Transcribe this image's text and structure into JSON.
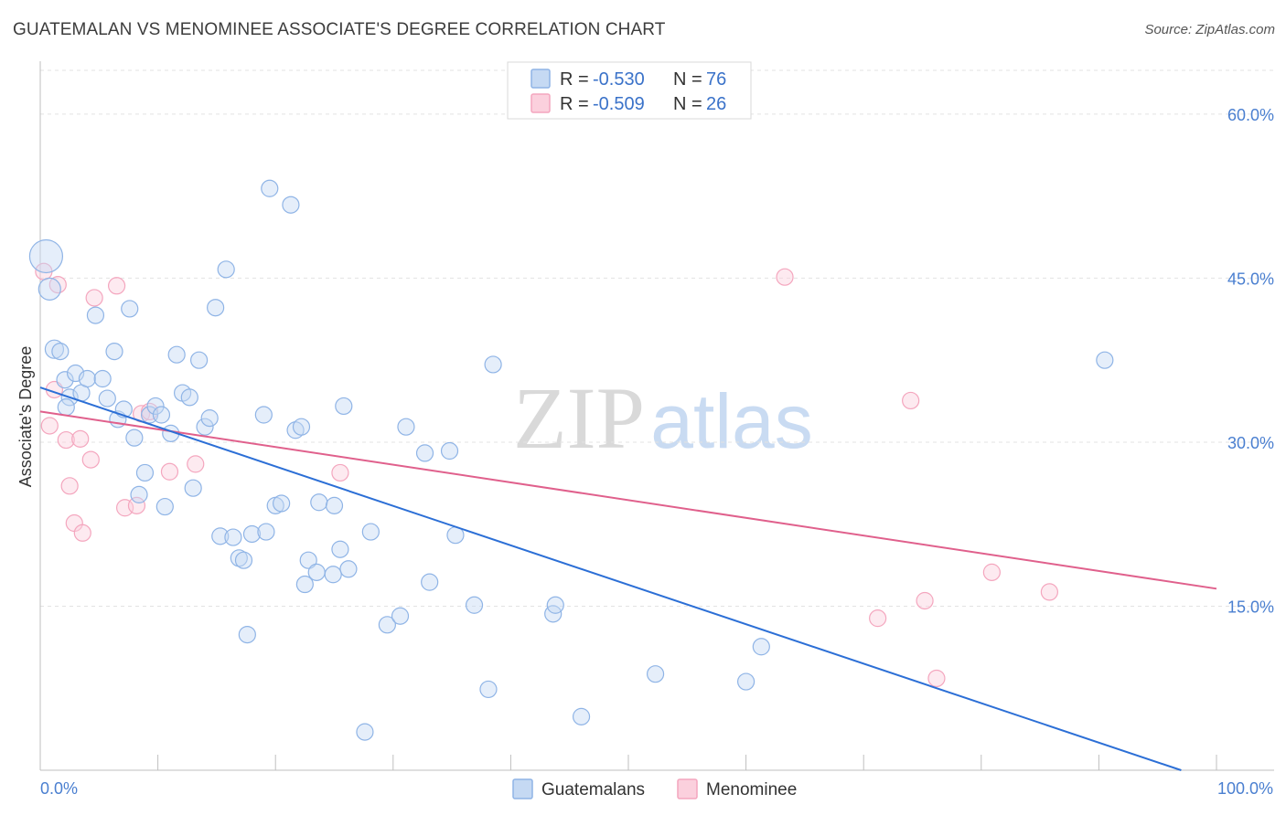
{
  "title": "GUATEMALAN VS MENOMINEE ASSOCIATE'S DEGREE CORRELATION CHART",
  "source": "Source: ZipAtlas.com",
  "watermark": {
    "zip": "ZIP",
    "atlas": "atlas"
  },
  "colors": {
    "blue": "#8fb4e6",
    "blue_line": "#2c6fd6",
    "pink": "#f4a6be",
    "pink_line": "#e0608c",
    "axis_text": "#4a7fd0"
  },
  "legend": {
    "rows": [
      {
        "r_label": "R = ",
        "r_value": "-0.530",
        "n_label": "N = ",
        "n_value": "76"
      },
      {
        "r_label": "R = ",
        "r_value": "-0.509",
        "n_label": "N = ",
        "n_value": "26"
      }
    ]
  },
  "chart_data": {
    "type": "scatter",
    "title": "GUATEMALAN VS MENOMINEE ASSOCIATE'S DEGREE CORRELATION CHART",
    "xlabel": "",
    "ylabel": "Associate's Degree",
    "xlim": [
      0,
      100
    ],
    "ylim": [
      0,
      64
    ],
    "x_tick_labels": [
      "0.0%",
      "100.0%"
    ],
    "y_ticks": [
      15,
      30,
      45,
      60
    ],
    "y_tick_labels": [
      "15.0%",
      "30.0%",
      "45.0%",
      "60.0%"
    ],
    "grid": true,
    "legend_position": "top-center",
    "series": [
      {
        "name": "Guatemalans",
        "color": "#8fb4e6",
        "trend": {
          "x": [
            0,
            97
          ],
          "y": [
            35.0,
            0.0
          ]
        },
        "points": [
          [
            0.5,
            47.0,
            18
          ],
          [
            0.8,
            44.0,
            12
          ],
          [
            1.2,
            38.5,
            10
          ],
          [
            1.7,
            38.3,
            9
          ],
          [
            2.1,
            35.7,
            9
          ],
          [
            2.5,
            34.1,
            9
          ],
          [
            3.0,
            36.3,
            9
          ],
          [
            3.5,
            34.5,
            9
          ],
          [
            2.2,
            33.2,
            9
          ],
          [
            4.0,
            35.8,
            9
          ],
          [
            4.7,
            41.6,
            9
          ],
          [
            5.3,
            35.8,
            9
          ],
          [
            5.7,
            34.0,
            9
          ],
          [
            6.3,
            38.3,
            9
          ],
          [
            6.6,
            32.1,
            9
          ],
          [
            7.1,
            33.0,
            9
          ],
          [
            7.6,
            42.2,
            9
          ],
          [
            8.0,
            30.4,
            9
          ],
          [
            8.4,
            25.2,
            9
          ],
          [
            8.9,
            27.2,
            9
          ],
          [
            9.3,
            32.5,
            9
          ],
          [
            9.8,
            33.3,
            9
          ],
          [
            10.3,
            32.5,
            9
          ],
          [
            10.6,
            24.1,
            9
          ],
          [
            11.1,
            30.8,
            9
          ],
          [
            11.6,
            38.0,
            9
          ],
          [
            12.1,
            34.5,
            9
          ],
          [
            12.7,
            34.1,
            9
          ],
          [
            13.0,
            25.8,
            9
          ],
          [
            13.5,
            37.5,
            9
          ],
          [
            14.0,
            31.4,
            9
          ],
          [
            14.4,
            32.2,
            9
          ],
          [
            14.9,
            42.3,
            9
          ],
          [
            15.3,
            21.4,
            9
          ],
          [
            15.8,
            45.8,
            9
          ],
          [
            16.4,
            21.3,
            9
          ],
          [
            16.9,
            19.4,
            9
          ],
          [
            17.3,
            19.2,
            9
          ],
          [
            17.6,
            12.4,
            9
          ],
          [
            18.0,
            21.6,
            9
          ],
          [
            19.0,
            32.5,
            9
          ],
          [
            19.2,
            21.8,
            9
          ],
          [
            19.5,
            53.2,
            9
          ],
          [
            20.0,
            24.2,
            9
          ],
          [
            20.5,
            24.4,
            9
          ],
          [
            21.3,
            51.7,
            9
          ],
          [
            21.7,
            31.1,
            9
          ],
          [
            22.2,
            31.4,
            9
          ],
          [
            22.5,
            17.0,
            9
          ],
          [
            22.8,
            19.2,
            9
          ],
          [
            23.5,
            18.1,
            9
          ],
          [
            23.7,
            24.5,
            9
          ],
          [
            25.0,
            24.2,
            9
          ],
          [
            25.5,
            20.2,
            9
          ],
          [
            25.8,
            33.3,
            9
          ],
          [
            26.2,
            18.4,
            9
          ],
          [
            24.9,
            17.9,
            9
          ],
          [
            27.6,
            3.5,
            9
          ],
          [
            28.1,
            21.8,
            9
          ],
          [
            29.5,
            13.3,
            9
          ],
          [
            30.6,
            14.1,
            9
          ],
          [
            31.1,
            31.4,
            9
          ],
          [
            32.7,
            29.0,
            9
          ],
          [
            33.1,
            17.2,
            9
          ],
          [
            34.8,
            29.2,
            9
          ],
          [
            35.3,
            21.5,
            9
          ],
          [
            36.9,
            15.1,
            9
          ],
          [
            38.1,
            7.4,
            9
          ],
          [
            38.5,
            37.1,
            9
          ],
          [
            43.6,
            14.3,
            9
          ],
          [
            43.8,
            15.1,
            9
          ],
          [
            46.0,
            4.9,
            9
          ],
          [
            52.3,
            8.8,
            9
          ],
          [
            60.0,
            8.1,
            9
          ],
          [
            61.3,
            11.3,
            9
          ],
          [
            90.5,
            37.5,
            9
          ]
        ]
      },
      {
        "name": "Menominee",
        "color": "#f4a6be",
        "trend": {
          "x": [
            0,
            100
          ],
          "y": [
            32.8,
            16.6
          ]
        },
        "points": [
          [
            0.3,
            45.6,
            9
          ],
          [
            0.8,
            31.5,
            9
          ],
          [
            1.2,
            34.8,
            9
          ],
          [
            1.5,
            44.4,
            9
          ],
          [
            2.2,
            30.2,
            9
          ],
          [
            2.5,
            26.0,
            9
          ],
          [
            2.9,
            22.6,
            9
          ],
          [
            3.4,
            30.3,
            9
          ],
          [
            3.6,
            21.7,
            9
          ],
          [
            4.3,
            28.4,
            9
          ],
          [
            4.6,
            43.2,
            9
          ],
          [
            6.5,
            44.3,
            9
          ],
          [
            7.2,
            24.0,
            9
          ],
          [
            8.2,
            24.2,
            9
          ],
          [
            8.6,
            32.6,
            9
          ],
          [
            9.3,
            32.8,
            9
          ],
          [
            11.0,
            27.3,
            9
          ],
          [
            13.2,
            28.0,
            9
          ],
          [
            25.5,
            27.2,
            9
          ],
          [
            63.3,
            45.1,
            9
          ],
          [
            71.2,
            13.9,
            9
          ],
          [
            74.0,
            33.8,
            9
          ],
          [
            75.2,
            15.5,
            9
          ],
          [
            76.2,
            8.4,
            9
          ],
          [
            80.9,
            18.1,
            9
          ],
          [
            85.8,
            16.3,
            9
          ]
        ]
      }
    ]
  }
}
